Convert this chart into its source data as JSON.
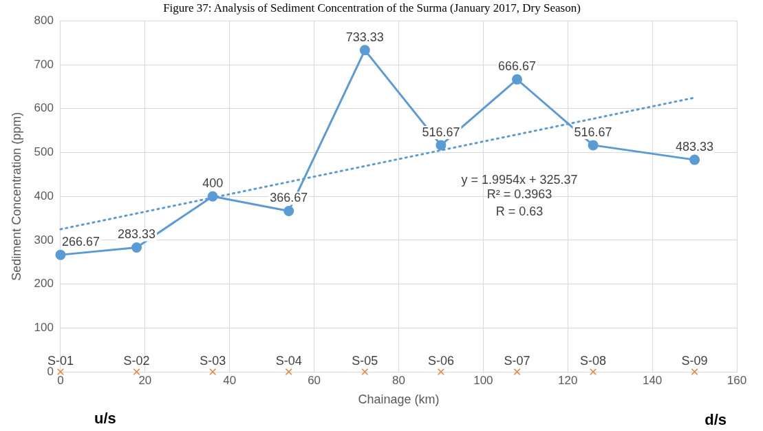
{
  "chart_data": {
    "type": "line",
    "title": "Figure 37: Analysis of Sediment Concentration of the Surma (January 2017, Dry Season)",
    "xlabel": "Chainage (km)",
    "ylabel": "Sediment Concentration (ppm)",
    "x": [
      0,
      18,
      36,
      54,
      72,
      90,
      108,
      126,
      150
    ],
    "series": [
      {
        "type": "line",
        "color": "#5b9bd5",
        "marker": "circle",
        "values": [
          266.67,
          283.33,
          400,
          366.67,
          733.33,
          516.67,
          666.67,
          516.67,
          483.33
        ],
        "value_labels": [
          "266.67",
          "283.33",
          "400",
          "366.67",
          "733.33",
          "516.67",
          "666.67",
          "516.67",
          "483.33"
        ]
      },
      {
        "type": "line",
        "color": "#5b9bd5",
        "marker": "none",
        "line_style": "dotted",
        "x": [
          0,
          150
        ],
        "values": [
          325,
          625
        ]
      },
      {
        "type": "scatter",
        "color": "#ed7d31",
        "marker": "cross",
        "values": [
          0,
          0,
          0,
          0,
          0,
          0,
          0,
          0,
          0
        ]
      }
    ],
    "xlim": [
      0,
      160
    ],
    "xticks": [
      0,
      20,
      40,
      60,
      80,
      100,
      120,
      140,
      160
    ],
    "ylim": [
      0,
      800
    ],
    "yticks": [
      0,
      100,
      200,
      300,
      400,
      500,
      600,
      700,
      800
    ],
    "grid": true,
    "legend": false,
    "annotations": [
      {
        "text": "S-01",
        "x": 0,
        "y": 0
      },
      {
        "text": "S-02",
        "x": 18,
        "y": 0
      },
      {
        "text": "S-03",
        "x": 36,
        "y": 0
      },
      {
        "text": "S-04",
        "x": 54,
        "y": 0
      },
      {
        "text": "S-05",
        "x": 72,
        "y": 0
      },
      {
        "text": "S-06",
        "x": 90,
        "y": 0
      },
      {
        "text": "S-07",
        "x": 108,
        "y": 0
      },
      {
        "text": "S-08",
        "x": 126,
        "y": 0
      },
      {
        "text": "S-09",
        "x": 150,
        "y": 0
      },
      "y = 1.9954x + 325.37",
      "R² = 0.3963",
      "R = 0.63",
      "u/s",
      "d/s"
    ]
  }
}
